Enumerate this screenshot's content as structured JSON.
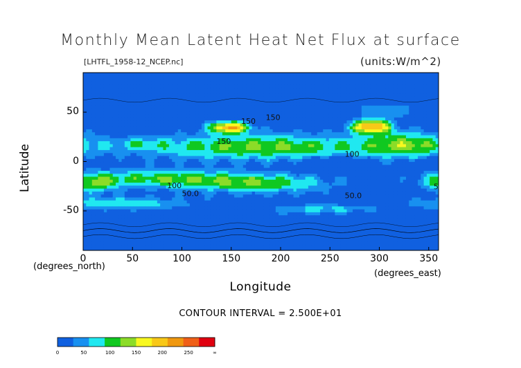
{
  "chart_data": {
    "type": "heatmap",
    "title": "Monthly Mean Latent Heat Net Flux at surface",
    "subtitle": "[LHTFL_1958-12_NCEP.nc]",
    "units": "(units:W/m^2)",
    "xlabel": "Longitude",
    "x_units": "(degrees_east)",
    "ylabel": "Latitude",
    "y_units": "(degrees_north)",
    "xlim": [
      0,
      360
    ],
    "ylim": [
      -90,
      90
    ],
    "x_ticks": [
      0,
      50,
      100,
      150,
      200,
      250,
      300,
      350
    ],
    "y_ticks": [
      50,
      0,
      -50
    ],
    "contour_interval_text": "CONTOUR INTERVAL = 2.500E+01",
    "contour_labels": [
      "150",
      "150",
      "150",
      "100",
      "50.0",
      "50.0",
      "50.0",
      "100"
    ],
    "colorbar": {
      "levels": [
        "0",
        "50",
        "100",
        "150",
        "200",
        "250",
        "∞"
      ],
      "colors": [
        "#1060e0",
        "#1890f0",
        "#20e8f0",
        "#10c820",
        "#8cdc28",
        "#f8f820",
        "#f8c818",
        "#f09810",
        "#f06018",
        "#e00010"
      ]
    }
  }
}
